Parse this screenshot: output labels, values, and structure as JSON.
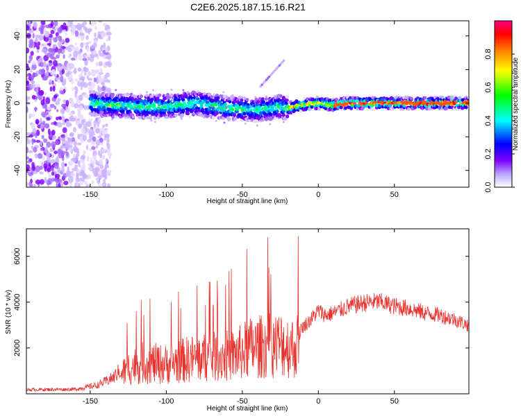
{
  "title": "C2E6.2025.187.15.16.R21",
  "chart_data": [
    {
      "type": "heatmap",
      "xlabel": "Height of straight line (km)",
      "ylabel": "Frequency (Hz)",
      "xlim": [
        -192,
        99
      ],
      "ylim": [
        -50,
        49
      ],
      "xticks": [
        -150,
        -100,
        -50,
        0,
        50
      ],
      "xtick_labels": [
        "-150",
        "-100",
        "-50",
        "0",
        "50"
      ],
      "yticks": [
        -40,
        -20,
        0,
        20,
        40
      ],
      "ytick_labels": [
        "-40",
        "-20",
        "0",
        "20",
        "40"
      ],
      "colorbar": {
        "label": "Normalized spectral amplitude",
        "range": [
          0,
          1
        ],
        "ticks": [
          0.0,
          0.2,
          0.4,
          0.6,
          0.8
        ],
        "tick_labels": [
          "0.0",
          "0.2",
          "0.4",
          "0.6",
          "0.8"
        ],
        "colors": [
          "#ffffff",
          "#7f00ff",
          "#0000ff",
          "#00ffff",
          "#00ff00",
          "#ffff00",
          "#ff8000",
          "#ff0000",
          "#ff0080"
        ]
      },
      "ridge": {
        "description_points_x": [
          -150,
          -140,
          -120,
          -100,
          -80,
          -60,
          -40,
          -25,
          -20,
          -10,
          0,
          10,
          20,
          50,
          80,
          99
        ],
        "center_freq": [
          0,
          -1,
          -2,
          -2,
          0,
          -3,
          -4,
          -2,
          -3,
          -1,
          0,
          -1,
          0,
          0,
          0,
          0
        ]
      },
      "grid": false
    },
    {
      "type": "line",
      "color": "#e8322d",
      "xlabel": "Height of straight line (km)",
      "ylabel": "SNR (10 * v/v)",
      "xlim": [
        -192,
        99
      ],
      "ylim": [
        0,
        7200
      ],
      "xticks": [
        -150,
        -100,
        -50,
        0,
        50
      ],
      "xtick_labels": [
        "-150",
        "-100",
        "-50",
        "0",
        "50"
      ],
      "yticks": [
        2000,
        4000,
        6000
      ],
      "ytick_labels": [
        "2000",
        "4000",
        "6000"
      ],
      "envelope_x": [
        -192,
        -160,
        -145,
        -135,
        -125,
        -115,
        -100,
        -85,
        -70,
        -55,
        -45,
        -35,
        -25,
        -15,
        -10,
        -5,
        0,
        5,
        10,
        20,
        30,
        40,
        50,
        60,
        70,
        80,
        90,
        99
      ],
      "envelope_y": [
        180,
        200,
        380,
        700,
        1400,
        1700,
        1600,
        1900,
        2000,
        2100,
        2500,
        2600,
        2700,
        2500,
        3000,
        3300,
        3700,
        3500,
        3600,
        3900,
        4050,
        4100,
        3900,
        3800,
        3600,
        3500,
        3300,
        3050
      ],
      "grid": false
    }
  ]
}
